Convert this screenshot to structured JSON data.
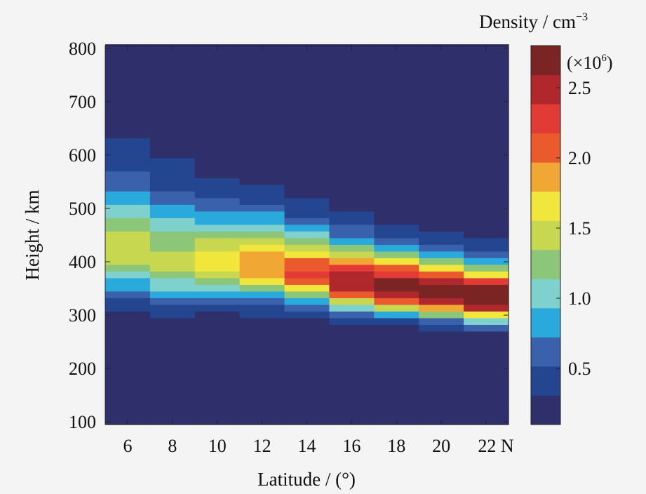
{
  "chart_data": {
    "type": "heatmap",
    "title": "",
    "xlabel": "Latitude / (°)",
    "ylabel": "Height / km",
    "colorbar_title": "Density / cm",
    "colorbar_exponent": "−3",
    "colorbar_multiplier": "(×10",
    "colorbar_multiplier_exp": "6",
    "xlim": [
      5,
      23
    ],
    "ylim": [
      95,
      805
    ],
    "x_ticks": [
      6,
      8,
      10,
      12,
      14,
      16,
      18,
      20,
      22
    ],
    "x_tick_labels": [
      "6",
      "8",
      "10",
      "12",
      "14",
      "16",
      "18",
      "20",
      "22 N"
    ],
    "y_ticks": [
      100,
      200,
      300,
      400,
      500,
      600,
      700,
      800
    ],
    "y_tick_labels": [
      "100",
      "200",
      "300",
      "400",
      "500",
      "600",
      "700",
      "800"
    ],
    "colorbar_ticks": [
      0.5,
      1.0,
      1.5,
      2.0,
      2.5
    ],
    "colorbar_tick_labels": [
      "0.5",
      "1.0",
      "1.5",
      "2.0",
      "2.5"
    ],
    "colorbar_range": [
      0.1,
      2.8
    ],
    "x": [
      6,
      8,
      10,
      12,
      14,
      16,
      18,
      20,
      22
    ],
    "profiles": [
      {
        "lat": 6,
        "peak_height": 420,
        "peak_density": 1.45,
        "width": 95,
        "bottom_height": 330
      },
      {
        "lat": 8,
        "peak_height": 400,
        "peak_density": 1.4,
        "width": 90,
        "bottom_height": 320
      },
      {
        "lat": 10,
        "peak_height": 395,
        "peak_density": 1.65,
        "width": 75,
        "bottom_height": 305
      },
      {
        "lat": 12,
        "peak_height": 390,
        "peak_density": 1.95,
        "width": 70,
        "bottom_height": 300
      },
      {
        "lat": 14,
        "peak_height": 375,
        "peak_density": 2.2,
        "width": 60,
        "bottom_height": 290
      },
      {
        "lat": 16,
        "peak_height": 360,
        "peak_density": 2.55,
        "width": 57,
        "bottom_height": 285
      },
      {
        "lat": 18,
        "peak_height": 350,
        "peak_density": 2.75,
        "width": 52,
        "bottom_height": 275
      },
      {
        "lat": 20,
        "peak_height": 340,
        "peak_density": 2.9,
        "width": 50,
        "bottom_height": 260
      },
      {
        "lat": 22,
        "peak_height": 330,
        "peak_density": 2.95,
        "width": 47,
        "bottom_height": 250
      }
    ],
    "colormap": [
      "#2f2f6b",
      "#24458f",
      "#3a62ac",
      "#2aa9dd",
      "#7ed1cd",
      "#8cc679",
      "#c7d750",
      "#f1e63b",
      "#f0a733",
      "#ea5a2d",
      "#e23a34",
      "#b0282c",
      "#7a2424"
    ],
    "grid": false,
    "legend": "colorbar-right"
  }
}
